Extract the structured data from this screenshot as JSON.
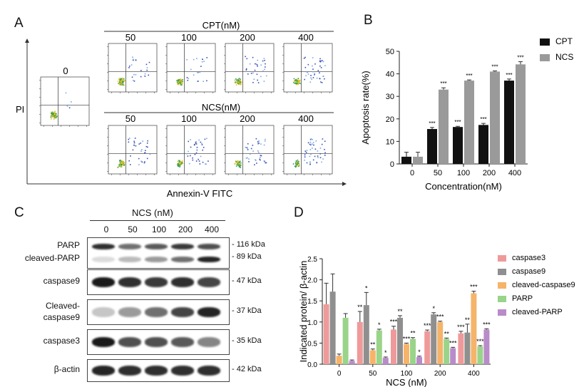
{
  "panelA": {
    "label": "A",
    "control_conc": "0",
    "cpt_title": "CPT(nM)",
    "ncs_title": "NCS(nM)",
    "concs": [
      "50",
      "100",
      "200",
      "400"
    ],
    "y_axis": "PI",
    "x_axis": "Annexin-V FITC"
  },
  "panelB": {
    "label": "B"
  },
  "panelC": {
    "label": "C",
    "header": "NCS (nM)",
    "lanes": [
      "0",
      "50",
      "100",
      "200",
      "400"
    ],
    "rows": [
      {
        "name": "PARP",
        "name2": "cleaved-PARP",
        "kda": "- 116 kDa",
        "kda2": "- 89 kDa",
        "bands": [
          0.85,
          0.55,
          0.65,
          0.8,
          0.7
        ],
        "bands2": [
          0.05,
          0.2,
          0.35,
          0.55,
          0.9
        ]
      },
      {
        "name": "caspase9",
        "kda": "- 47 kDa",
        "bands": [
          0.95,
          0.85,
          0.8,
          0.85,
          0.75
        ]
      },
      {
        "name": "Cleaved-",
        "name2": "caspase9",
        "kda": "- 37 kDa",
        "bands": [
          0.15,
          0.35,
          0.55,
          0.75,
          0.9
        ]
      },
      {
        "name": "caspase3",
        "kda": "- 35 kDa",
        "bands": [
          0.95,
          0.7,
          0.7,
          0.65,
          0.45
        ]
      },
      {
        "name": "β-actin",
        "kda": "- 42 kDa",
        "bands": [
          0.9,
          0.85,
          0.85,
          0.85,
          0.85
        ]
      }
    ]
  },
  "panelD": {
    "label": "D"
  },
  "chart_data": [
    {
      "type": "bar",
      "title": "",
      "xlabel": "Concentration(nM)",
      "ylabel": "Apoptosis rate(%)",
      "ylim": [
        0,
        50
      ],
      "yticks": [
        "0",
        "10",
        "20",
        "30",
        "40",
        "50"
      ],
      "categories": [
        "0",
        "50",
        "100",
        "200",
        "400"
      ],
      "series": [
        {
          "name": "CPT",
          "color": "#111111",
          "values": [
            3.2,
            15.5,
            16.4,
            17.3,
            37.0
          ],
          "errors": [
            2.0,
            0.7,
            0.3,
            0.7,
            0.7
          ],
          "sig": [
            "",
            "***",
            "***",
            "***",
            "***"
          ]
        },
        {
          "name": "NCS",
          "color": "#9a9a9a",
          "values": [
            3.2,
            33.0,
            37.0,
            41.0,
            44.2
          ],
          "errors": [
            2.0,
            0.8,
            0.3,
            0.3,
            1.2
          ],
          "sig": [
            "",
            "***",
            "***",
            "***",
            "***"
          ]
        }
      ],
      "legend": "top-right"
    },
    {
      "type": "bar",
      "title": "",
      "xlabel": "NCS (nM)",
      "ylabel": "Indicated protein/ β-actin",
      "ylim": [
        0,
        2.5
      ],
      "yticks": [
        "0.0",
        "0.5",
        "1.0",
        "1.5",
        "2.0",
        "2.5"
      ],
      "categories": [
        "0",
        "50",
        "100",
        "200",
        "400"
      ],
      "series": [
        {
          "name": "caspase3",
          "color": "#ef9a9a",
          "values": [
            1.42,
            1.0,
            0.82,
            0.78,
            0.73
          ],
          "errors": [
            0.5,
            0.25,
            0.08,
            0.03,
            0.05
          ],
          "sig": [
            "",
            "**",
            "***",
            "***",
            "***"
          ]
        },
        {
          "name": "caspase9",
          "color": "#8f8f8f",
          "values": [
            1.72,
            1.4,
            1.1,
            1.18,
            0.75
          ],
          "errors": [
            0.42,
            0.3,
            0.05,
            0.04,
            0.2
          ],
          "sig": [
            "",
            "*",
            "**",
            "*",
            "**"
          ]
        },
        {
          "name": "cleaved-caspase9",
          "color": "#f5b46a",
          "values": [
            0.2,
            0.33,
            0.48,
            1.0,
            1.68
          ],
          "errors": [
            0.04,
            0.03,
            0.02,
            0.02,
            0.05
          ],
          "sig": [
            "",
            "**",
            "***",
            "***",
            "***"
          ]
        },
        {
          "name": "PARP",
          "color": "#9ad48a",
          "values": [
            1.1,
            0.8,
            0.6,
            0.6,
            0.42
          ],
          "errors": [
            0.1,
            0.03,
            0.03,
            0.02,
            0.02
          ],
          "sig": [
            "",
            "*",
            "**",
            "**",
            "***"
          ]
        },
        {
          "name": "cleaved-PARP",
          "color": "#b98bc9",
          "values": [
            0.08,
            0.15,
            0.17,
            0.38,
            0.82
          ],
          "errors": [
            0.02,
            0.02,
            0.02,
            0.02,
            0.02
          ],
          "sig": [
            "",
            "*",
            "*",
            "***",
            "***"
          ]
        }
      ],
      "legend": "top-right"
    }
  ]
}
